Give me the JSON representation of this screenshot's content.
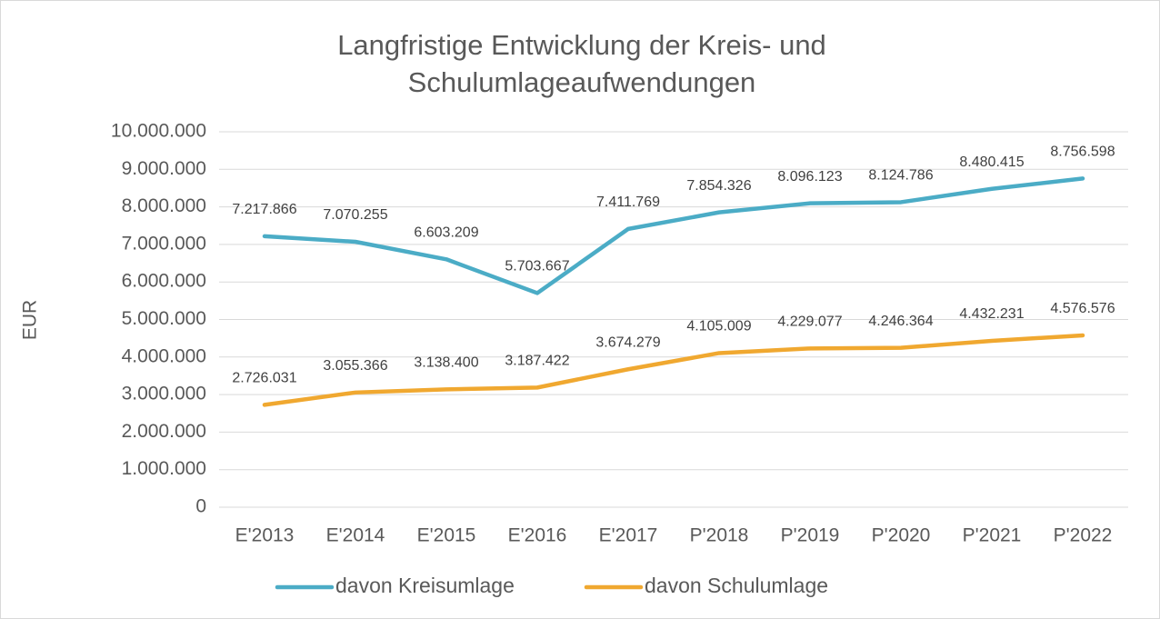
{
  "chart_data": {
    "type": "line",
    "title": [
      "Langfristige Entwicklung der Kreis- und",
      "Schulumlageaufwendungen"
    ],
    "y_label": "EUR",
    "categories": [
      "E'2013",
      "E'2014",
      "E'2015",
      "E'2016",
      "E'2017",
      "P'2018",
      "P'2019",
      "P'2020",
      "P'2021",
      "P'2022"
    ],
    "series": [
      {
        "name": "davon Kreisumlage",
        "color": "#4bacc6",
        "values": [
          7217866,
          7070255,
          6603209,
          5703667,
          7411769,
          7854326,
          8096123,
          8124786,
          8480415,
          8756598
        ],
        "value_labels": [
          "7.217.866",
          "7.070.255",
          "6.603.209",
          "5.703.667",
          "7.411.769",
          "7.854.326",
          "8.096.123",
          "8.124.786",
          "8.480.415",
          "8.756.598"
        ]
      },
      {
        "name": "davon Schulumlage",
        "color": "#f0a830",
        "values": [
          2726031,
          3055366,
          3138400,
          3187422,
          3674279,
          4105009,
          4229077,
          4246364,
          4432231,
          4576576
        ],
        "value_labels": [
          "2.726.031",
          "3.055.366",
          "3.138.400",
          "3.187.422",
          "3.674.279",
          "4.105.009",
          "4.229.077",
          "4.246.364",
          "4.432.231",
          "4.576.576"
        ]
      }
    ],
    "ylim": [
      0,
      10000000
    ],
    "yticks": [
      0,
      {
        "value": 1000000,
        "label": "1.000.000"
      },
      {
        "value": 2000000,
        "label": "2.000.000"
      },
      {
        "value": 3000000,
        "label": "3.000.000"
      },
      {
        "value": 4000000,
        "label": "4.000.000"
      },
      {
        "value": 5000000,
        "label": "5.000.000"
      },
      {
        "value": 6000000,
        "label": "6.000.000"
      },
      {
        "value": 7000000,
        "label": "7.000.000"
      },
      {
        "value": 8000000,
        "label": "8.000.000"
      },
      {
        "value": 9000000,
        "label": "9.000.000"
      },
      {
        "value": 10000000,
        "label": "10.000.000"
      }
    ],
    "grid": true,
    "legend": "bottom"
  }
}
